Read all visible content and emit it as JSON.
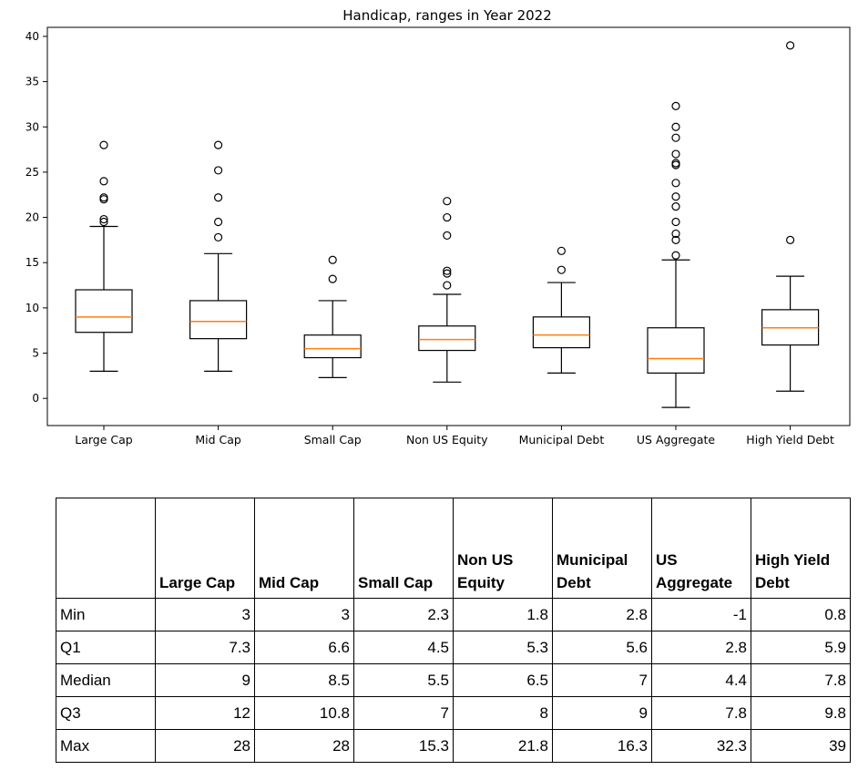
{
  "chart_data": {
    "type": "box",
    "title": "Handicap, ranges in Year 2022",
    "ylim": [
      -3,
      41
    ],
    "yticks": [
      0,
      5,
      10,
      15,
      20,
      25,
      30,
      35,
      40
    ],
    "categories": [
      "Large Cap",
      "Mid Cap",
      "Small Cap",
      "Non US Equity",
      "Municipal Debt",
      "US Aggregate",
      "High Yield Debt"
    ],
    "boxes": [
      {
        "name": "Large Cap",
        "whisker_low": 3,
        "q1": 7.3,
        "median": 9,
        "q3": 12,
        "whisker_high": 19,
        "outliers": [
          19.5,
          19.8,
          22,
          22.2,
          24,
          28
        ]
      },
      {
        "name": "Mid Cap",
        "whisker_low": 3,
        "q1": 6.6,
        "median": 8.5,
        "q3": 10.8,
        "whisker_high": 16,
        "outliers": [
          17.8,
          19.5,
          22.2,
          25.2,
          28
        ]
      },
      {
        "name": "Small Cap",
        "whisker_low": 2.3,
        "q1": 4.5,
        "median": 5.5,
        "q3": 7,
        "whisker_high": 10.8,
        "outliers": [
          13.2,
          15.3
        ]
      },
      {
        "name": "Non US Equity",
        "whisker_low": 1.8,
        "q1": 5.3,
        "median": 6.5,
        "q3": 8,
        "whisker_high": 11.5,
        "outliers": [
          12.5,
          13.8,
          14.1,
          18,
          20,
          21.8
        ]
      },
      {
        "name": "Municipal Debt",
        "whisker_low": 2.8,
        "q1": 5.6,
        "median": 7,
        "q3": 9,
        "whisker_high": 12.8,
        "outliers": [
          14.2,
          16.3
        ]
      },
      {
        "name": "US Aggregate",
        "whisker_low": -1,
        "q1": 2.8,
        "median": 4.4,
        "q3": 7.8,
        "whisker_high": 15.3,
        "outliers": [
          15.8,
          17.5,
          18.2,
          19.5,
          21.2,
          22.3,
          23.8,
          25.8,
          26,
          27,
          28.8,
          30,
          32.3
        ]
      },
      {
        "name": "High Yield Debt",
        "whisker_low": 0.8,
        "q1": 5.9,
        "median": 7.8,
        "q3": 9.8,
        "whisker_high": 13.5,
        "outliers": [
          17.5,
          39
        ]
      }
    ],
    "median_color": "#ff7f0e",
    "box_color": "#000000",
    "grid": false,
    "legend": "none"
  },
  "table": {
    "columns": [
      "",
      "Large Cap",
      "Mid Cap",
      "Small Cap",
      "Non US Equity",
      "Municipal Debt",
      "US Aggregate",
      "High Yield Debt"
    ],
    "rows": [
      {
        "label": "Min",
        "values": [
          "3",
          "3",
          "2.3",
          "1.8",
          "2.8",
          "-1",
          "0.8"
        ]
      },
      {
        "label": "Q1",
        "values": [
          "7.3",
          "6.6",
          "4.5",
          "5.3",
          "5.6",
          "2.8",
          "5.9"
        ]
      },
      {
        "label": "Median",
        "values": [
          "9",
          "8.5",
          "5.5",
          "6.5",
          "7",
          "4.4",
          "7.8"
        ]
      },
      {
        "label": "Q3",
        "values": [
          "12",
          "10.8",
          "7",
          "8",
          "9",
          "7.8",
          "9.8"
        ]
      },
      {
        "label": "Max",
        "values": [
          "28",
          "28",
          "15.3",
          "21.8",
          "16.3",
          "32.3",
          "39"
        ]
      }
    ]
  }
}
